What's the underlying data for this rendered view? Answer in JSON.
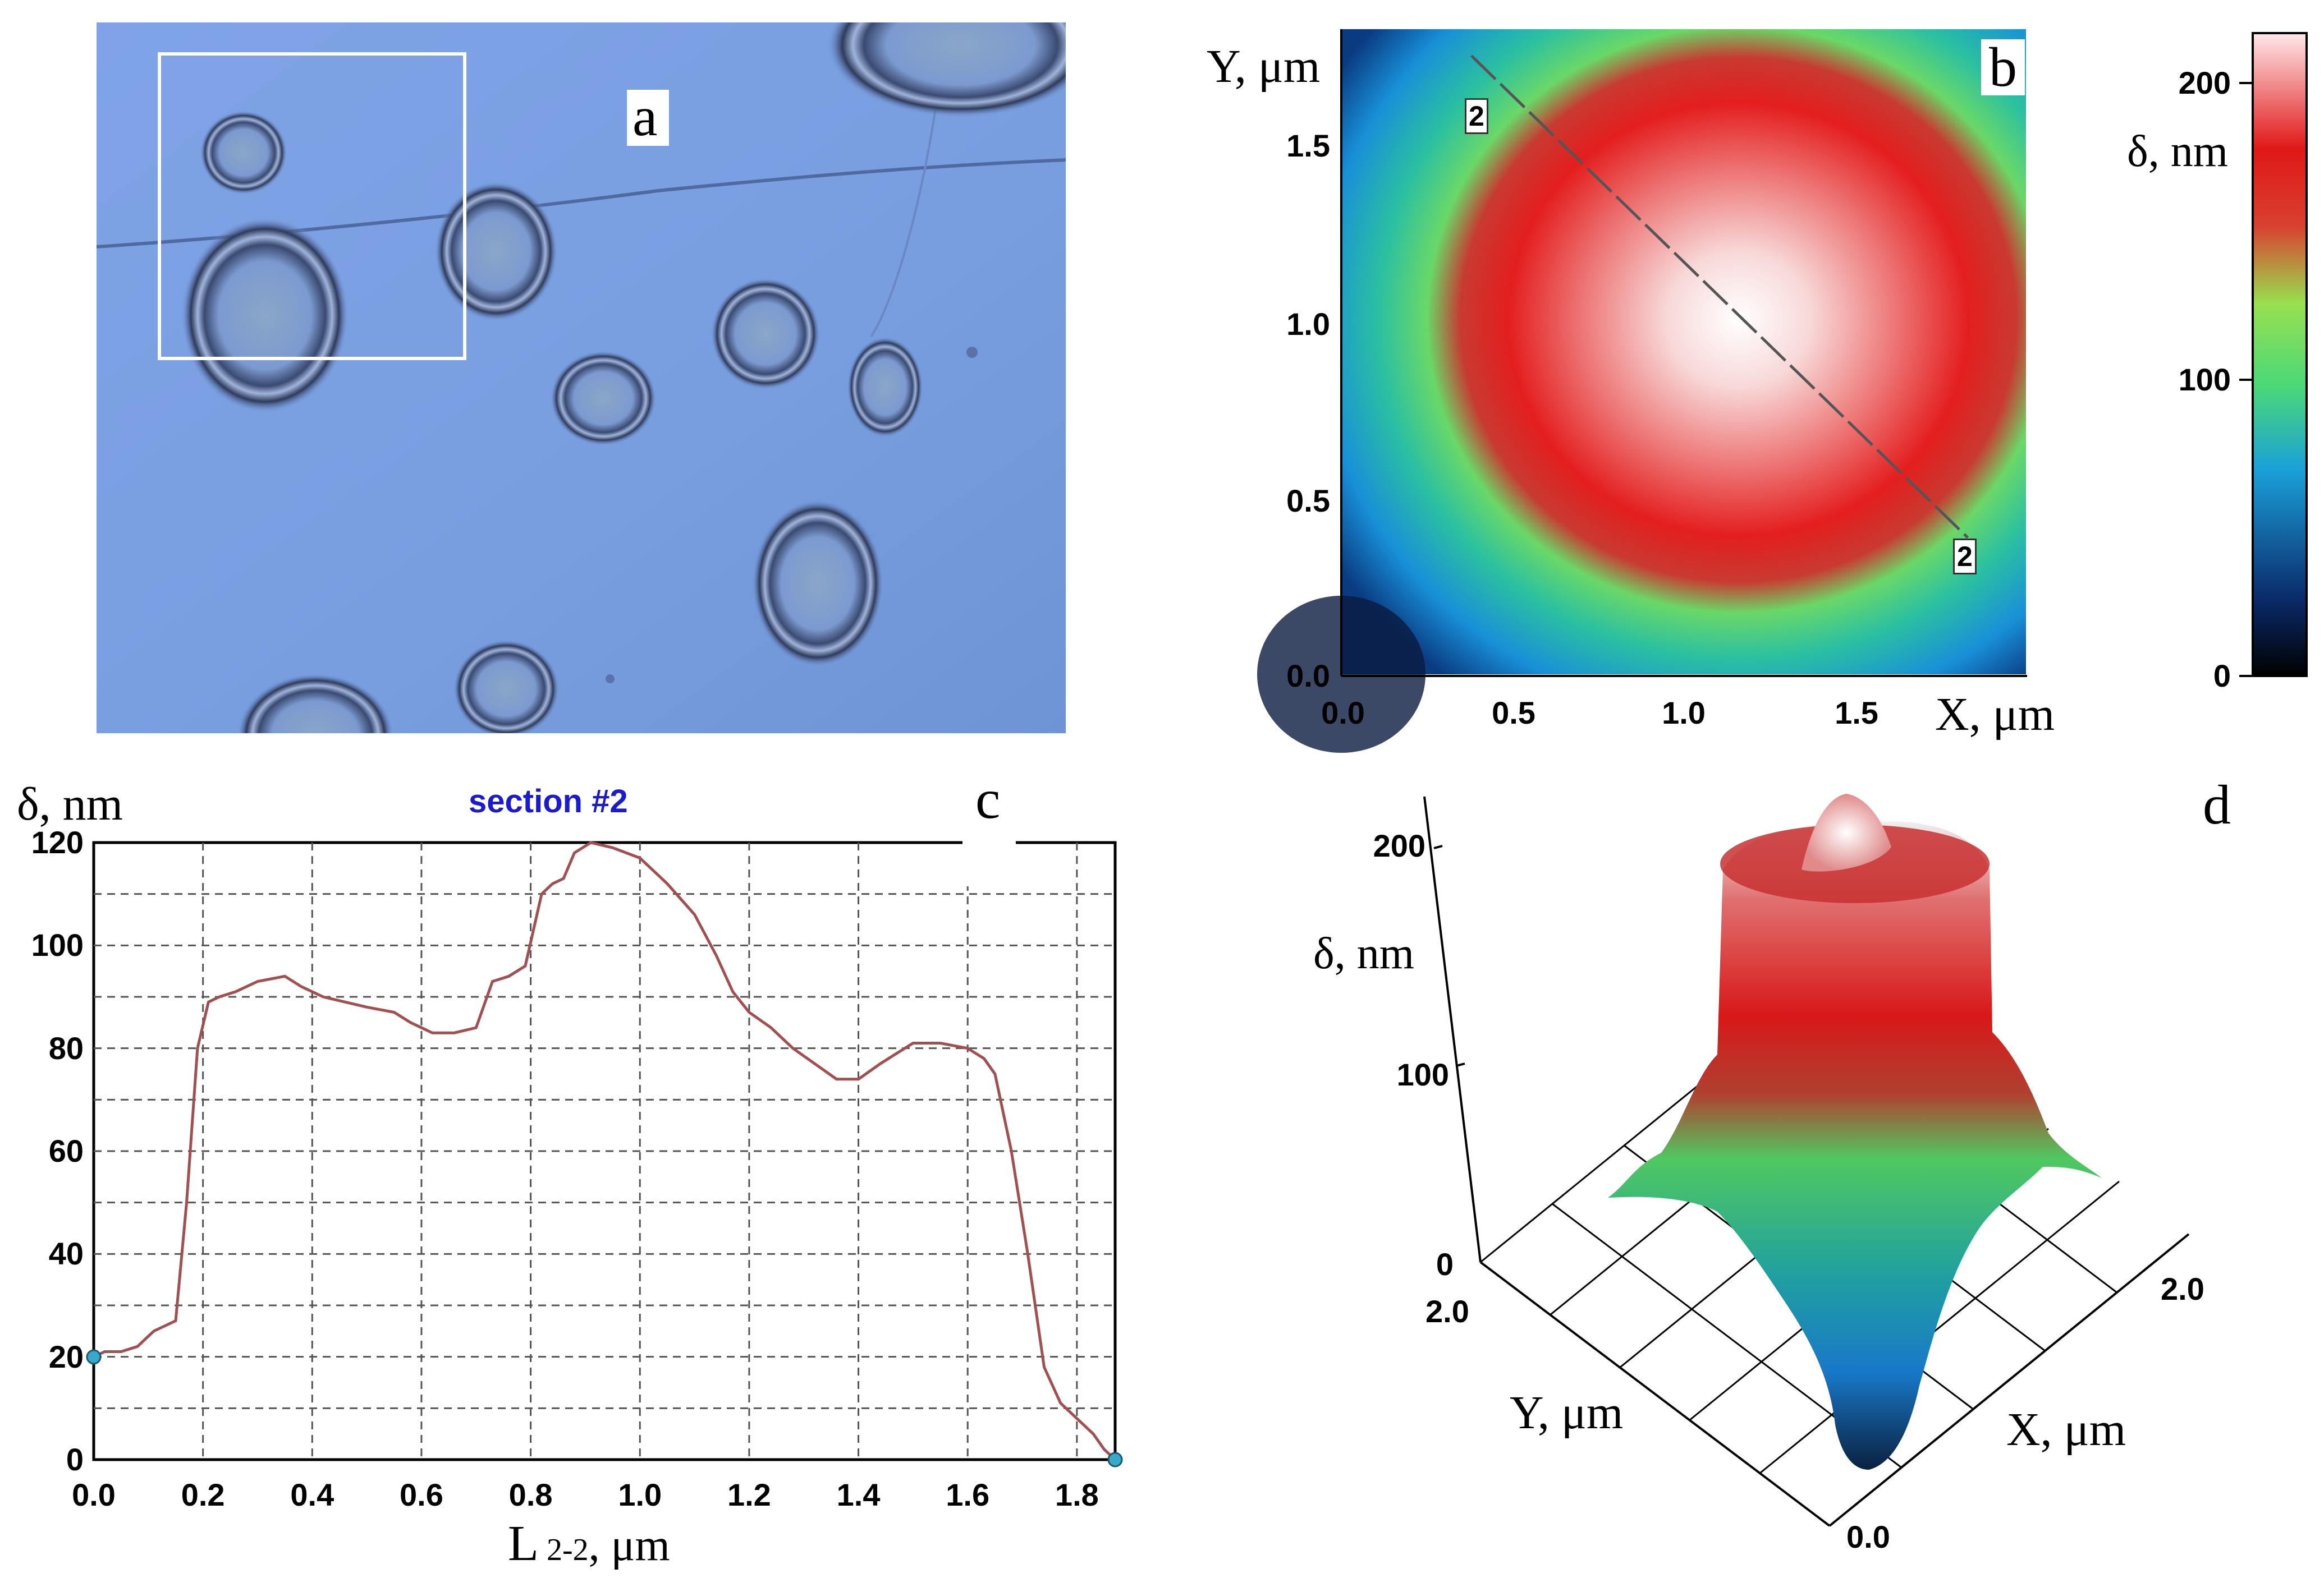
{
  "panels": {
    "a": {
      "letter": "a"
    },
    "b": {
      "letter": "b",
      "y_axis": "Y, μm",
      "x_axis": "X, μm",
      "section_marker": "2",
      "colorbar_label": "δ, nm"
    },
    "c": {
      "letter": "c",
      "title": "section #2",
      "y_axis": "δ, nm",
      "x_axis_main": "L",
      "x_axis_sub": "2-2",
      "x_axis_unit": ", μm"
    },
    "d": {
      "letter": "d",
      "z_axis": "δ, nm",
      "y_axis": "Y, μm",
      "x_axis": "X, μm"
    }
  },
  "colors": {
    "substrate": "#7ea2e4",
    "profile_line": "#a05050",
    "grid": "#555555",
    "section_title": "#1a1ad0",
    "colorbar": [
      "#000000",
      "#0a2a6a",
      "#1aa0d8",
      "#4ad878",
      "#98e050",
      "#d84030",
      "#e01818",
      "#ffe8ea"
    ]
  },
  "chart_data": [
    {
      "panel": "b",
      "type": "heatmap",
      "xlabel": "X, μm",
      "ylabel": "Y, μm",
      "xlim": [
        0,
        2
      ],
      "ylim": [
        0,
        1.7
      ],
      "xticks": [
        "0.0",
        "0.5",
        "1.0",
        "1.5"
      ],
      "yticks": [
        "0.0",
        "0.5",
        "1.0",
        "1.5"
      ],
      "colorbar": {
        "label": "δ, nm",
        "range": [
          0,
          220
        ],
        "ticks": [
          "0",
          "100",
          "200"
        ]
      },
      "section_line": {
        "start": [
          0.38,
          1.63
        ],
        "end": [
          1.83,
          0.36
        ],
        "label": "2"
      }
    },
    {
      "panel": "c",
      "type": "line",
      "title": "section #2",
      "xlabel": "L 2-2 , μm",
      "ylabel": "δ, nm",
      "xlim": [
        0,
        1.87
      ],
      "ylim": [
        0,
        120
      ],
      "xticks": [
        "0.0",
        "0.2",
        "0.4",
        "0.6",
        "0.8",
        "1.0",
        "1.2",
        "1.4",
        "1.6",
        "1.8"
      ],
      "yticks": [
        "0",
        "20",
        "40",
        "60",
        "80",
        "100",
        "120"
      ],
      "grid": true,
      "series": [
        {
          "x": [
            0.0,
            0.02,
            0.05,
            0.08,
            0.11,
            0.15,
            0.17,
            0.19,
            0.21,
            0.23,
            0.26,
            0.3,
            0.35,
            0.38,
            0.42,
            0.46,
            0.5,
            0.55,
            0.58,
            0.62,
            0.66,
            0.7,
            0.73,
            0.76,
            0.79,
            0.82,
            0.84,
            0.86,
            0.88,
            0.91,
            0.95,
            1.0,
            1.05,
            1.1,
            1.14,
            1.17,
            1.2,
            1.24,
            1.28,
            1.32,
            1.36,
            1.4,
            1.44,
            1.47,
            1.5,
            1.55,
            1.6,
            1.63,
            1.65,
            1.68,
            1.71,
            1.74,
            1.77,
            1.8,
            1.83,
            1.85,
            1.87
          ],
          "y": [
            20,
            21,
            21,
            22,
            25,
            27,
            50,
            80,
            89,
            90,
            91,
            93,
            94,
            92,
            90,
            89,
            88,
            87,
            85,
            83,
            83,
            84,
            93,
            94,
            96,
            110,
            112,
            113,
            118,
            120,
            119,
            117,
            112,
            106,
            98,
            91,
            87,
            84,
            80,
            77,
            74,
            74,
            77,
            79,
            81,
            81,
            80,
            78,
            75,
            60,
            40,
            18,
            11,
            8,
            5,
            2,
            0
          ]
        }
      ]
    },
    {
      "panel": "d",
      "type": "surface",
      "zlabel": "δ, nm",
      "xlabel": "X, μm",
      "ylabel": "Y, μm",
      "zticks": [
        "0",
        "100",
        "200"
      ],
      "yticks": [
        "2.0"
      ],
      "xticks": [
        "0.0",
        "2.0"
      ]
    }
  ]
}
